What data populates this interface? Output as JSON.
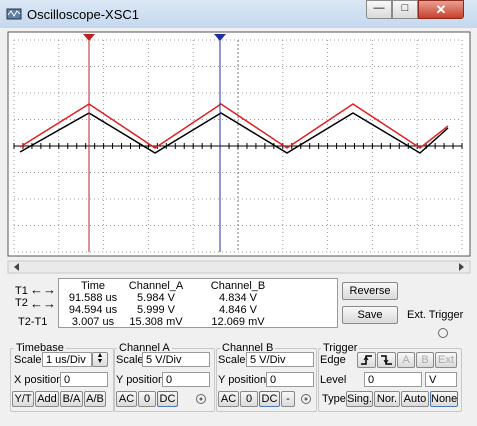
{
  "window": {
    "title": "Oscilloscope-XSC1"
  },
  "readout": {
    "headers": [
      "Time",
      "Channel_A",
      "Channel_B"
    ],
    "row_labels": [
      "T1",
      "T2",
      "T2-T1"
    ],
    "rows": [
      [
        "91.588 us",
        "5.984 V",
        "4.834 V"
      ],
      [
        "94.594 us",
        "5.999 V",
        "4.846 V"
      ],
      [
        "3.007 us",
        "15.308 mV",
        "12.069 mV"
      ]
    ]
  },
  "buttons": {
    "reverse": "Reverse",
    "save": "Save",
    "ext_trigger": "Ext. Trigger"
  },
  "timebase": {
    "title": "Timebase",
    "scale_label": "Scale",
    "scale": "1 us/Div",
    "xpos_label": "X position",
    "xpos": "0",
    "modes": [
      "Y/T",
      "Add",
      "B/A",
      "A/B"
    ]
  },
  "channel_a": {
    "title": "Channel A",
    "scale_label": "Scale",
    "scale": "5 V/Div",
    "ypos_label": "Y position",
    "ypos": "0",
    "coupling": [
      "AC",
      "0",
      "DC"
    ]
  },
  "channel_b": {
    "title": "Channel B",
    "scale_label": "Scale",
    "scale": "5 V/Div",
    "ypos_label": "Y position",
    "ypos": "0",
    "coupling": [
      "AC",
      "0",
      "DC",
      "-"
    ]
  },
  "trigger": {
    "title": "Trigger",
    "edge_label": "Edge",
    "edge_sources": [
      "A",
      "B",
      "Ext"
    ],
    "level_label": "Level",
    "level": "0",
    "level_unit": "V",
    "type_label": "Type",
    "types": [
      "Sing.",
      "Nor.",
      "Auto",
      "None"
    ]
  }
}
